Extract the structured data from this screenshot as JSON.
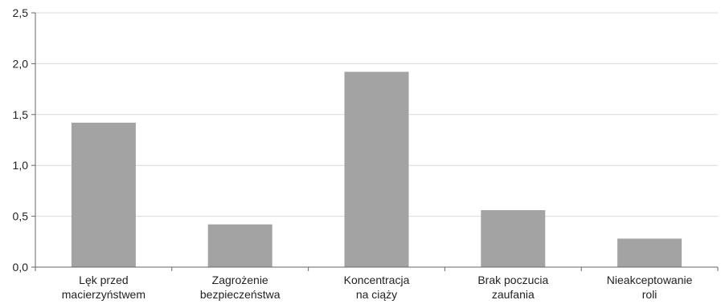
{
  "chart_data": {
    "type": "bar",
    "categories": [
      [
        "Lęk przed",
        "macierzyństwem"
      ],
      [
        "Zagrożenie",
        "bezpieczeństwa"
      ],
      [
        "Koncentracja",
        "na ciąży"
      ],
      [
        "Brak poczucia",
        "zaufania"
      ],
      [
        "Nieakceptowanie",
        "roli"
      ]
    ],
    "values": [
      1.42,
      0.42,
      1.92,
      0.56,
      0.28
    ],
    "ylim": [
      0,
      2.5
    ],
    "yticks": [
      "0,0",
      "0,5",
      "1,0",
      "1,5",
      "2,0",
      "2,5"
    ],
    "title": "",
    "xlabel": "",
    "ylabel": "",
    "grid": true,
    "colors": {
      "bar": "#a3a3a3",
      "grid": "#d9d9d9",
      "axis": "#666666"
    }
  }
}
